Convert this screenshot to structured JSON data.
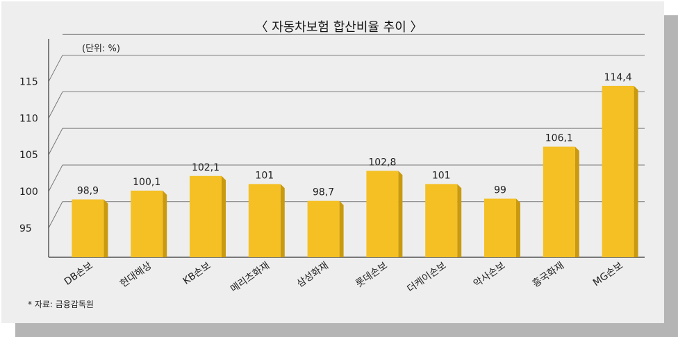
{
  "chart_data": {
    "type": "bar",
    "title": "〈 자동차보험 합산비율 추이 〉",
    "unit_label": "(단위: %)",
    "categories": [
      "DB손보",
      "현대해상",
      "KB손보",
      "메리츠화재",
      "삼성화재",
      "롯데손보",
      "더케이손보",
      "악사손보",
      "흥국화재",
      "MG손보"
    ],
    "values": [
      98.9,
      100.1,
      102.1,
      101,
      98.7,
      102.8,
      101,
      99,
      106.1,
      114.4
    ],
    "value_labels": [
      "98,9",
      "100,1",
      "102,1",
      "101",
      "98,7",
      "102,8",
      "101",
      "99",
      "106,1",
      "114,4"
    ],
    "y_ticks": [
      95,
      100,
      105,
      110,
      115
    ],
    "ylim": [
      91,
      119
    ],
    "grid": true,
    "source": "* 자료: 금융감독원",
    "colors": {
      "bar": "#f4c024",
      "bar_side": "#c99a10",
      "background": "#eeeeee",
      "shadow": "#b5b5b5"
    }
  }
}
